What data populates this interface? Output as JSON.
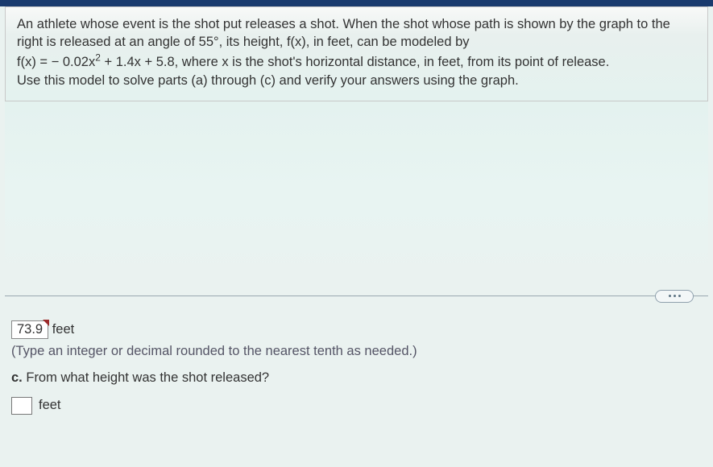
{
  "colors": {
    "top_bar": "#1a3a6e",
    "panel_border": "#c8c8c8",
    "text": "#333333",
    "divider": "#9aa8b0",
    "pill_border": "#8fa0ad",
    "pill_dot": "#5f7585",
    "tick": "#9c2a2a",
    "input_border": "#777777",
    "bg_gradient_start": "#f8f9f8",
    "bg_gradient_end": "#e4f2ef"
  },
  "problem": {
    "line1": "An athlete whose event is the shot put releases a shot. When the shot whose path is shown by the graph to the right is released at an angle of 55°, its height, f(x), in feet, can be modeled by",
    "eq_prefix": "f(x) = − 0.02x",
    "eq_exp": "2",
    "eq_suffix": " + 1.4x + 5.8, where x is the shot's horizontal distance, in feet, from its point of release.",
    "line3": "Use this model to solve parts (a) through (c) and verify your answers using the graph."
  },
  "answer": {
    "value": "73.9",
    "unit": "feet",
    "hint": "(Type an integer or decimal rounded to the nearest tenth as needed.)"
  },
  "partC": {
    "label": "c.",
    "question": "From what height was the shot released?",
    "unit": "feet"
  }
}
